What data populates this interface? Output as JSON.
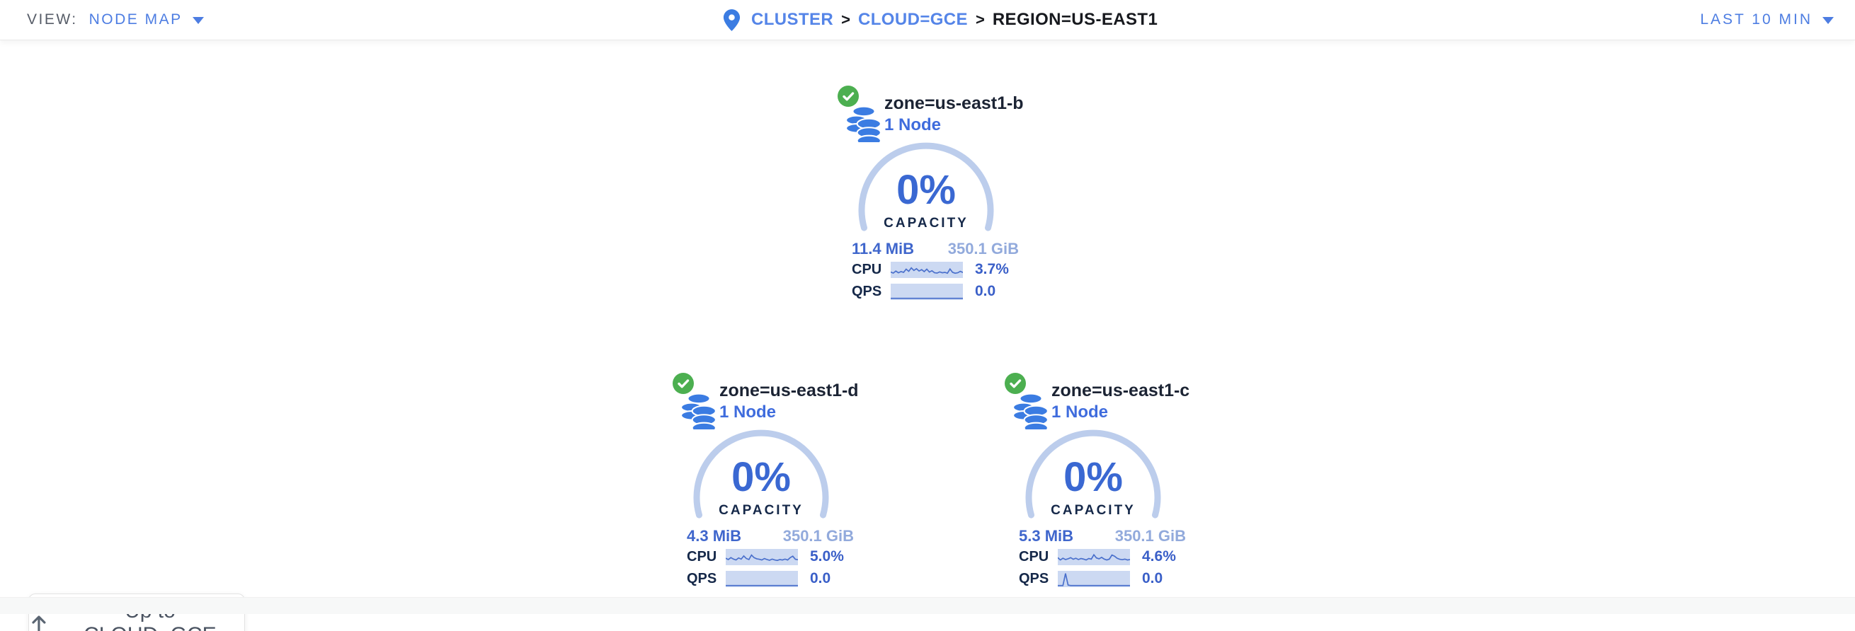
{
  "header": {
    "view_label": "VIEW:",
    "view_value": "NODE MAP",
    "time_range": "LAST 10 MIN"
  },
  "breadcrumb": {
    "separator": ">",
    "items": [
      {
        "label": "CLUSTER",
        "type": "link"
      },
      {
        "label": "CLOUD=GCE",
        "type": "link"
      },
      {
        "label": "REGION=US-EAST1",
        "type": "current"
      }
    ]
  },
  "zones": [
    {
      "name": "zone=us-east1-b",
      "status": "healthy",
      "nodes": "1 Node",
      "capacity_pct": "0%",
      "capacity_label": "CAPACITY",
      "capacity_used": "11.4 MiB",
      "capacity_total": "350.1 GiB",
      "cpu_label": "CPU",
      "cpu_value": "3.7%",
      "qps_label": "QPS",
      "qps_value": "0.0",
      "cpu_spark": [
        0.35,
        0.28,
        0.42,
        0.3,
        0.38,
        0.33,
        0.55,
        0.4,
        0.64,
        0.46,
        0.58,
        0.42,
        0.52,
        0.38,
        0.55,
        0.35,
        0.44,
        0.3,
        0.28,
        0.36,
        0.3,
        0.33,
        0.27,
        0.56,
        0.33,
        0.27,
        0.3,
        0.4,
        0.32
      ],
      "qps_spark": [
        0.05,
        0.05,
        0.05,
        0.05,
        0.05,
        0.05,
        0.05,
        0.05,
        0.05,
        0.05,
        0.05,
        0.05,
        0.05,
        0.05,
        0.05,
        0.05,
        0.05,
        0.05,
        0.05,
        0.05,
        0.05,
        0.05,
        0.05,
        0.05,
        0.05,
        0.05,
        0.05,
        0.05,
        0.05
      ]
    },
    {
      "name": "zone=us-east1-d",
      "status": "healthy",
      "nodes": "1 Node",
      "capacity_pct": "0%",
      "capacity_label": "CAPACITY",
      "capacity_used": "4.3 MiB",
      "capacity_total": "350.1 GiB",
      "cpu_label": "CPU",
      "cpu_value": "5.0%",
      "qps_label": "QPS",
      "qps_value": "0.0",
      "cpu_spark": [
        0.42,
        0.33,
        0.46,
        0.36,
        0.3,
        0.44,
        0.36,
        0.58,
        0.4,
        0.33,
        0.64,
        0.46,
        0.38,
        0.35,
        0.3,
        0.4,
        0.33,
        0.28,
        0.36,
        0.3,
        0.27,
        0.33,
        0.3,
        0.36,
        0.3,
        0.46,
        0.56,
        0.35,
        0.32
      ],
      "qps_spark": [
        0.05,
        0.05,
        0.05,
        0.05,
        0.05,
        0.05,
        0.05,
        0.05,
        0.05,
        0.05,
        0.05,
        0.05,
        0.05,
        0.05,
        0.05,
        0.05,
        0.05,
        0.05,
        0.05,
        0.05,
        0.05,
        0.05,
        0.05,
        0.05,
        0.05,
        0.05,
        0.05,
        0.05,
        0.05
      ]
    },
    {
      "name": "zone=us-east1-c",
      "status": "healthy",
      "nodes": "1 Node",
      "capacity_pct": "0%",
      "capacity_label": "CAPACITY",
      "capacity_used": "5.3 MiB",
      "capacity_total": "350.1 GiB",
      "cpu_label": "CPU",
      "cpu_value": "4.6%",
      "qps_label": "QPS",
      "qps_value": "0.0",
      "cpu_spark": [
        0.46,
        0.3,
        0.42,
        0.33,
        0.38,
        0.46,
        0.35,
        0.42,
        0.33,
        0.4,
        0.36,
        0.3,
        0.4,
        0.36,
        0.66,
        0.44,
        0.38,
        0.48,
        0.36,
        0.3,
        0.36,
        0.64,
        0.56,
        0.42,
        0.35,
        0.32,
        0.36,
        0.3,
        0.33
      ],
      "qps_spark": [
        0.05,
        0.05,
        0.05,
        0.88,
        0.08,
        0.05,
        0.05,
        0.05,
        0.05,
        0.05,
        0.05,
        0.05,
        0.05,
        0.05,
        0.05,
        0.05,
        0.05,
        0.05,
        0.05,
        0.05,
        0.05,
        0.05,
        0.05,
        0.05,
        0.05,
        0.05,
        0.05,
        0.05,
        0.05
      ]
    }
  ],
  "up_button": {
    "label": "Up to CLOUD=GCE",
    "icon": "up-arrow-icon"
  },
  "colors": {
    "accent_blue": "#4d7de2",
    "link_blue": "#5585e8",
    "dark_navy": "#152849",
    "pct_blue": "#3a68d2",
    "value_blue": "#3a5fc8",
    "capacity_used_blue": "#3f66cc",
    "capacity_total_blue": "#92aadc",
    "arc_blue": "#bccdec",
    "spark_bg": "#ccd9f2",
    "spark_line": "#4a70cc",
    "db_icon_blue": "#3b7ce2",
    "healthy_green": "#4caf50",
    "label_gray": "#575d68",
    "button_text": "#4a5361"
  }
}
